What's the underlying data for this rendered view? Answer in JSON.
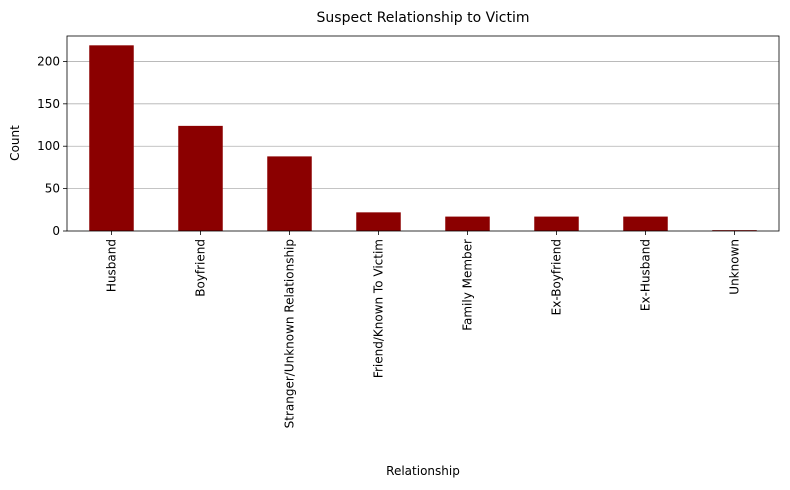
{
  "chart_data": {
    "type": "bar",
    "title": "Suspect Relationship to Victim",
    "xlabel": "Relationship",
    "ylabel": "Count",
    "categories": [
      "Husband",
      "Boyfriend",
      "Stranger/Unknown Relationship",
      "Friend/Known To Victim",
      "Family Member",
      "Ex-Boyfriend",
      "Ex-Husband",
      "Unknown"
    ],
    "values": [
      219,
      124,
      88,
      22,
      17,
      17,
      17,
      1
    ],
    "ylim": [
      0,
      230
    ],
    "yticks": [
      0,
      50,
      100,
      150,
      200
    ],
    "grid": "y",
    "bar_color": "#8b0000"
  }
}
